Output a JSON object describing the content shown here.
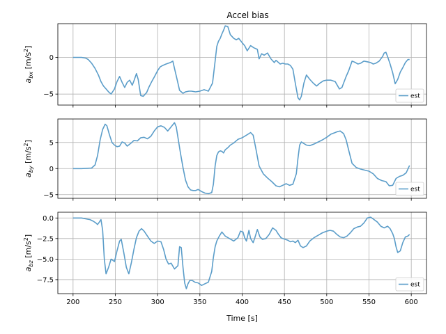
{
  "chart_data": [
    {
      "type": "line",
      "title": "Accel bias",
      "ylabel": "a_bx [m/s^2]",
      "ylabel_parts": {
        "sym": "a",
        "sub": "bx",
        "unit": " [m/s",
        "sup": "2",
        "close": "]"
      },
      "xlim": [
        182,
        618
      ],
      "ylim": [
        -6.5,
        4.6
      ],
      "yticks": [
        0,
        -5
      ],
      "ytick_labels": [
        "0",
        "−5"
      ],
      "grid": true,
      "legend": "lower-right",
      "color": "#5B9DC9",
      "series": [
        {
          "name": "est",
          "x": [
            200,
            210,
            215,
            218,
            222,
            226,
            230,
            233,
            236,
            239,
            242,
            245,
            249,
            252,
            255,
            258,
            261,
            264,
            267,
            270,
            272,
            275,
            277,
            280,
            283,
            287,
            290,
            293,
            296,
            300,
            303,
            306,
            310,
            315,
            318,
            320,
            323,
            326,
            330,
            333,
            337,
            340,
            345,
            350,
            355,
            360,
            365,
            368,
            370,
            372,
            374,
            376,
            378,
            380,
            383,
            386,
            390,
            393,
            396,
            400,
            403,
            406,
            410,
            414,
            418,
            420,
            423,
            426,
            430,
            434,
            438,
            440,
            442,
            445,
            448,
            451,
            454,
            457,
            460,
            463,
            466,
            468,
            470,
            473,
            476,
            480,
            484,
            488,
            492,
            496,
            500,
            505,
            510,
            515,
            518,
            520,
            523,
            526,
            530,
            534,
            537,
            540,
            544,
            548,
            552,
            555,
            558,
            562,
            566,
            568,
            570,
            572,
            575,
            578,
            581,
            584,
            587,
            590,
            593,
            596,
            598
          ],
          "y": [
            0,
            0,
            -0.1,
            -0.3,
            -0.8,
            -1.5,
            -2.4,
            -3.3,
            -3.9,
            -4.3,
            -4.7,
            -5.0,
            -4.3,
            -3.3,
            -2.6,
            -3.4,
            -4.1,
            -3.4,
            -3.1,
            -3.8,
            -3.2,
            -2.2,
            -3.0,
            -5.2,
            -5.3,
            -4.8,
            -4.0,
            -3.3,
            -2.7,
            -1.8,
            -1.3,
            -1.1,
            -0.9,
            -0.7,
            -0.5,
            -1.5,
            -3.0,
            -4.5,
            -4.9,
            -4.7,
            -4.6,
            -4.6,
            -4.7,
            -4.6,
            -4.4,
            -4.6,
            -3.5,
            -0.5,
            1.5,
            2.2,
            2.6,
            3.2,
            3.7,
            4.3,
            4.2,
            3.1,
            2.6,
            2.4,
            2.6,
            2.0,
            1.6,
            0.9,
            1.6,
            1.3,
            1.1,
            -0.2,
            0.5,
            0.3,
            0.6,
            -0.2,
            -0.7,
            -0.4,
            -0.6,
            -0.9,
            -0.8,
            -0.9,
            -0.9,
            -1.1,
            -1.6,
            -3.6,
            -5.5,
            -5.8,
            -5.3,
            -3.5,
            -2.4,
            -3.0,
            -3.5,
            -3.9,
            -3.5,
            -3.2,
            -3.1,
            -3.1,
            -3.3,
            -4.3,
            -4.1,
            -3.5,
            -2.6,
            -1.8,
            -0.5,
            -0.7,
            -0.9,
            -0.8,
            -0.5,
            -0.6,
            -0.7,
            -0.9,
            -0.8,
            -0.5,
            0.1,
            0.6,
            0.7,
            0.1,
            -0.9,
            -2.1,
            -3.6,
            -3.0,
            -2.0,
            -1.4,
            -0.7,
            -0.3,
            -0.3
          ]
        }
      ]
    },
    {
      "type": "line",
      "ylabel": "a_by [m/s^2]",
      "ylabel_parts": {
        "sym": "a",
        "sub": "by",
        "unit": " [m/s",
        "sup": "2",
        "close": "]"
      },
      "xlim": [
        182,
        618
      ],
      "ylim": [
        -5.7,
        9.5
      ],
      "yticks": [
        5,
        0,
        -5
      ],
      "ytick_labels": [
        "5",
        "0",
        "−5"
      ],
      "grid": true,
      "legend": "lower-right",
      "color": "#5B9DC9",
      "series": [
        {
          "name": "est",
          "x": [
            200,
            210,
            222,
            226,
            229,
            232,
            235,
            238,
            240,
            243,
            246,
            249,
            252,
            255,
            258,
            261,
            264,
            268,
            272,
            276,
            280,
            284,
            288,
            292,
            296,
            300,
            304,
            308,
            312,
            316,
            320,
            322,
            324,
            327,
            330,
            333,
            336,
            339,
            342,
            345,
            348,
            352,
            356,
            360,
            364,
            366,
            368,
            370,
            372,
            374,
            376,
            378,
            380,
            383,
            386,
            390,
            395,
            400,
            405,
            410,
            413,
            416,
            420,
            425,
            430,
            435,
            440,
            444,
            448,
            452,
            456,
            460,
            464,
            466,
            468,
            470,
            473,
            476,
            480,
            485,
            490,
            495,
            500,
            505,
            510,
            513,
            516,
            520,
            523,
            526,
            530,
            535,
            540,
            545,
            550,
            555,
            560,
            565,
            570,
            574,
            578,
            582,
            586,
            590,
            594,
            598
          ],
          "y": [
            0,
            0,
            0.1,
            0.7,
            2.5,
            5.5,
            7.5,
            8.5,
            8.2,
            6.5,
            5.0,
            4.5,
            4.2,
            4.3,
            5.1,
            4.9,
            4.3,
            4.8,
            5.4,
            5.3,
            5.9,
            6.0,
            5.7,
            6.2,
            7.2,
            8.0,
            8.2,
            7.9,
            7.2,
            8.0,
            8.8,
            8.0,
            6.0,
            3.0,
            0.2,
            -2.2,
            -3.5,
            -4.1,
            -4.2,
            -4.2,
            -4.0,
            -4.4,
            -4.7,
            -4.8,
            -4.6,
            -3.0,
            0.5,
            2.5,
            3.2,
            3.4,
            3.3,
            3.0,
            3.6,
            4.0,
            4.5,
            4.9,
            5.6,
            5.9,
            6.4,
            6.9,
            6.4,
            4.0,
            0.5,
            -1.0,
            -1.8,
            -2.5,
            -3.3,
            -3.5,
            -3.2,
            -2.9,
            -3.2,
            -3.0,
            -1.0,
            2.0,
            4.5,
            5.1,
            4.8,
            4.5,
            4.4,
            4.7,
            5.1,
            5.5,
            6.0,
            6.6,
            6.9,
            7.1,
            7.2,
            6.7,
            5.5,
            3.5,
            1.0,
            0.2,
            -0.1,
            -0.3,
            -0.5,
            -1.0,
            -1.9,
            -2.3,
            -2.5,
            -3.3,
            -3.2,
            -1.9,
            -1.5,
            -1.3,
            -0.8,
            0.6
          ]
        }
      ]
    },
    {
      "type": "line",
      "ylabel": "a_bz [m/s^2]",
      "ylabel_parts": {
        "sym": "a",
        "sub": "bz",
        "unit": " [m/s",
        "sup": "2",
        "close": "]"
      },
      "xlabel": "Time [s]",
      "xlim": [
        182,
        618
      ],
      "ylim": [
        -9.2,
        0.7
      ],
      "yticks": [
        0.0,
        -2.5,
        -5.0,
        -7.5
      ],
      "ytick_labels": [
        "0.0",
        "−2.5",
        "−5.0",
        "−7.5"
      ],
      "xticks": [
        200,
        250,
        300,
        350,
        400,
        450,
        500,
        550,
        600
      ],
      "xtick_labels": [
        "200",
        "250",
        "300",
        "350",
        "400",
        "450",
        "500",
        "550",
        "600"
      ],
      "grid": true,
      "legend": "lower-right",
      "color": "#5B9DC9",
      "series": [
        {
          "name": "est",
          "x": [
            200,
            210,
            215,
            220,
            224,
            227,
            229,
            231,
            233,
            235,
            237,
            239,
            242,
            245,
            249,
            252,
            255,
            257,
            260,
            263,
            266,
            269,
            272,
            275,
            278,
            281,
            284,
            288,
            292,
            296,
            300,
            304,
            307,
            310,
            313,
            316,
            320,
            324,
            326,
            328,
            330,
            332,
            334,
            336,
            338,
            341,
            344,
            348,
            352,
            356,
            360,
            364,
            366,
            368,
            370,
            373,
            376,
            380,
            385,
            390,
            395,
            398,
            401,
            403,
            405,
            408,
            410,
            413,
            415,
            418,
            421,
            424,
            428,
            432,
            436,
            440,
            443,
            446,
            448,
            451,
            454,
            457,
            460,
            463,
            466,
            469,
            472,
            476,
            480,
            485,
            490,
            495,
            500,
            504,
            508,
            512,
            516,
            520,
            524,
            528,
            532,
            536,
            540,
            544,
            548,
            552,
            556,
            560,
            564,
            568,
            572,
            575,
            578,
            580,
            582,
            584,
            587,
            590,
            593,
            596,
            598
          ],
          "y": [
            0,
            0,
            -0.1,
            -0.2,
            -0.4,
            -0.6,
            -0.8,
            -0.5,
            -0.2,
            -1.5,
            -5.0,
            -6.8,
            -6.0,
            -5.0,
            -5.3,
            -4.0,
            -2.8,
            -2.6,
            -4.2,
            -6.0,
            -6.8,
            -5.4,
            -3.8,
            -2.4,
            -1.6,
            -1.3,
            -1.6,
            -2.2,
            -2.8,
            -3.1,
            -2.8,
            -2.9,
            -3.8,
            -5.0,
            -5.6,
            -5.5,
            -6.2,
            -5.8,
            -3.5,
            -3.6,
            -6.0,
            -7.9,
            -8.6,
            -8.0,
            -7.6,
            -7.6,
            -7.8,
            -7.9,
            -8.2,
            -8.0,
            -7.8,
            -6.5,
            -4.8,
            -3.5,
            -2.8,
            -2.2,
            -1.7,
            -2.2,
            -2.5,
            -2.8,
            -2.4,
            -1.6,
            -1.7,
            -2.4,
            -2.8,
            -1.5,
            -2.5,
            -3.0,
            -2.4,
            -1.4,
            -2.3,
            -2.6,
            -2.5,
            -2.0,
            -1.2,
            -1.5,
            -2.0,
            -2.4,
            -2.5,
            -2.6,
            -2.7,
            -2.9,
            -2.8,
            -3.0,
            -2.7,
            -3.4,
            -3.6,
            -3.4,
            -2.8,
            -2.4,
            -2.1,
            -1.8,
            -1.6,
            -1.5,
            -1.6,
            -2.0,
            -2.3,
            -2.4,
            -2.2,
            -1.8,
            -1.3,
            -1.1,
            -1.0,
            -0.6,
            0.0,
            0.1,
            -0.2,
            -0.5,
            -1.0,
            -1.2,
            -1.0,
            -1.3,
            -1.9,
            -2.5,
            -3.5,
            -4.2,
            -4.0,
            -3.0,
            -2.3,
            -2.2,
            -2.0
          ]
        }
      ]
    }
  ]
}
